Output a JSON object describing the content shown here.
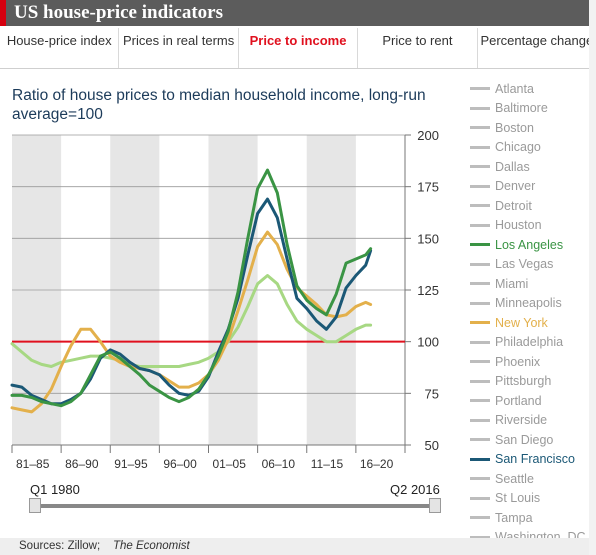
{
  "header": {
    "title": "US house-price indicators"
  },
  "tabs": [
    {
      "label": "House-price index",
      "active": false
    },
    {
      "label": "Prices in real terms",
      "active": false
    },
    {
      "label": "Price to income",
      "active": true
    },
    {
      "label": "Price to rent",
      "active": false
    },
    {
      "label": "Percentage change",
      "active": false
    }
  ],
  "colors": {
    "accent": "#e0101e",
    "los_angeles": "#3a9444",
    "new_york": "#e3b04b",
    "san_francisco": "#1b5876",
    "light_green": "#a7d883",
    "reference": "#e0101e",
    "inactive": "#bdbdbd"
  },
  "slider": {
    "start_label": "Q1 1980",
    "end_label": "Q2 2016"
  },
  "source": {
    "prefix": "Sources: Zillow; ",
    "italic": "The Economist"
  },
  "chart_data": {
    "type": "line",
    "title": "Ratio of house prices to median household income, long-run average=100",
    "y_ticks": [
      200,
      175,
      150,
      125,
      100,
      75,
      50
    ],
    "ylim": [
      50,
      200
    ],
    "xlim": [
      1980,
      2020
    ],
    "x_tick_labels": [
      "81–85",
      "86–90",
      "91–95",
      "96–00",
      "01–05",
      "06–10",
      "11–15",
      "16–20"
    ],
    "shaded_periods": [
      [
        1980,
        1985
      ],
      [
        1990,
        1995
      ],
      [
        2000,
        2005
      ],
      [
        2010,
        2015
      ]
    ],
    "reference_line": 100,
    "legend": [
      "Atlanta",
      "Baltimore",
      "Boston",
      "Chicago",
      "Dallas",
      "Denver",
      "Detroit",
      "Houston",
      "Los Angeles",
      "Las Vegas",
      "Miami",
      "Minneapolis",
      "New York",
      "Philadelphia",
      "Phoenix",
      "Pittsburgh",
      "Portland",
      "Riverside",
      "San Diego",
      "San Francisco",
      "Seattle",
      "St Louis",
      "Tampa",
      "Washington, DC"
    ],
    "highlighted": [
      "Los Angeles",
      "New York",
      "San Francisco"
    ],
    "series": [
      {
        "name": "",
        "color_key": "light_green",
        "points": [
          [
            1980,
            99
          ],
          [
            1981,
            95
          ],
          [
            1982,
            91
          ],
          [
            1983,
            89
          ],
          [
            1984,
            88
          ],
          [
            1985,
            90
          ],
          [
            1986,
            91
          ],
          [
            1987,
            92
          ],
          [
            1988,
            93
          ],
          [
            1989,
            93
          ],
          [
            1990,
            92
          ],
          [
            1991,
            91
          ],
          [
            1992,
            89
          ],
          [
            1993,
            88
          ],
          [
            1994,
            88
          ],
          [
            1995,
            88
          ],
          [
            1996,
            88
          ],
          [
            1997,
            88
          ],
          [
            1998,
            89
          ],
          [
            1999,
            90
          ],
          [
            2000,
            92
          ],
          [
            2001,
            95
          ],
          [
            2002,
            100
          ],
          [
            2003,
            107
          ],
          [
            2004,
            117
          ],
          [
            2005,
            128
          ],
          [
            2006,
            132
          ],
          [
            2007,
            128
          ],
          [
            2008,
            118
          ],
          [
            2009,
            110
          ],
          [
            2010,
            106
          ],
          [
            2011,
            103
          ],
          [
            2012,
            100
          ],
          [
            2013,
            100
          ],
          [
            2014,
            103
          ],
          [
            2015,
            106
          ],
          [
            2016,
            108
          ],
          [
            2016.5,
            108
          ]
        ]
      },
      {
        "name": "New York",
        "color_key": "new_york",
        "points": [
          [
            1980,
            68
          ],
          [
            1981,
            67
          ],
          [
            1982,
            66
          ],
          [
            1983,
            70
          ],
          [
            1984,
            77
          ],
          [
            1985,
            88
          ],
          [
            1986,
            98
          ],
          [
            1987,
            106
          ],
          [
            1988,
            106
          ],
          [
            1989,
            100
          ],
          [
            1990,
            93
          ],
          [
            1991,
            90
          ],
          [
            1992,
            88
          ],
          [
            1993,
            87
          ],
          [
            1994,
            86
          ],
          [
            1995,
            84
          ],
          [
            1996,
            81
          ],
          [
            1997,
            78
          ],
          [
            1998,
            78
          ],
          [
            1999,
            80
          ],
          [
            2000,
            84
          ],
          [
            2001,
            91
          ],
          [
            2002,
            101
          ],
          [
            2003,
            115
          ],
          [
            2004,
            130
          ],
          [
            2005,
            146
          ],
          [
            2006,
            153
          ],
          [
            2007,
            147
          ],
          [
            2008,
            135
          ],
          [
            2009,
            126
          ],
          [
            2010,
            122
          ],
          [
            2011,
            118
          ],
          [
            2012,
            113
          ],
          [
            2013,
            112
          ],
          [
            2014,
            113
          ],
          [
            2015,
            117
          ],
          [
            2016,
            119
          ],
          [
            2016.5,
            118
          ]
        ]
      },
      {
        "name": "San Francisco",
        "color_key": "san_francisco",
        "points": [
          [
            1980,
            79
          ],
          [
            1981,
            78
          ],
          [
            1982,
            74
          ],
          [
            1983,
            72
          ],
          [
            1984,
            70
          ],
          [
            1985,
            70
          ],
          [
            1986,
            72
          ],
          [
            1987,
            75
          ],
          [
            1988,
            82
          ],
          [
            1989,
            92
          ],
          [
            1990,
            96
          ],
          [
            1991,
            94
          ],
          [
            1992,
            90
          ],
          [
            1993,
            87
          ],
          [
            1994,
            86
          ],
          [
            1995,
            84
          ],
          [
            1996,
            79
          ],
          [
            1997,
            75
          ],
          [
            1998,
            74
          ],
          [
            1999,
            76
          ],
          [
            2000,
            83
          ],
          [
            2001,
            95
          ],
          [
            2002,
            106
          ],
          [
            2003,
            121
          ],
          [
            2004,
            142
          ],
          [
            2005,
            162
          ],
          [
            2006,
            169
          ],
          [
            2007,
            160
          ],
          [
            2008,
            140
          ],
          [
            2009,
            121
          ],
          [
            2010,
            116
          ],
          [
            2011,
            110
          ],
          [
            2012,
            106
          ],
          [
            2013,
            112
          ],
          [
            2014,
            126
          ],
          [
            2015,
            132
          ],
          [
            2016,
            137
          ],
          [
            2016.5,
            144
          ]
        ]
      },
      {
        "name": "Los Angeles",
        "color_key": "los_angeles",
        "points": [
          [
            1980,
            74
          ],
          [
            1981,
            74
          ],
          [
            1982,
            73
          ],
          [
            1983,
            71
          ],
          [
            1984,
            70
          ],
          [
            1985,
            69
          ],
          [
            1986,
            71
          ],
          [
            1987,
            75
          ],
          [
            1988,
            84
          ],
          [
            1989,
            93
          ],
          [
            1990,
            95
          ],
          [
            1991,
            92
          ],
          [
            1992,
            88
          ],
          [
            1993,
            84
          ],
          [
            1994,
            79
          ],
          [
            1995,
            76
          ],
          [
            1996,
            73
          ],
          [
            1997,
            71
          ],
          [
            1998,
            73
          ],
          [
            1999,
            77
          ],
          [
            2000,
            84
          ],
          [
            2001,
            93
          ],
          [
            2002,
            105
          ],
          [
            2003,
            124
          ],
          [
            2004,
            150
          ],
          [
            2005,
            174
          ],
          [
            2006,
            183
          ],
          [
            2007,
            172
          ],
          [
            2008,
            147
          ],
          [
            2009,
            127
          ],
          [
            2010,
            120
          ],
          [
            2011,
            116
          ],
          [
            2012,
            113
          ],
          [
            2013,
            123
          ],
          [
            2014,
            138
          ],
          [
            2015,
            140
          ],
          [
            2016,
            142
          ],
          [
            2016.5,
            145
          ]
        ]
      }
    ]
  }
}
